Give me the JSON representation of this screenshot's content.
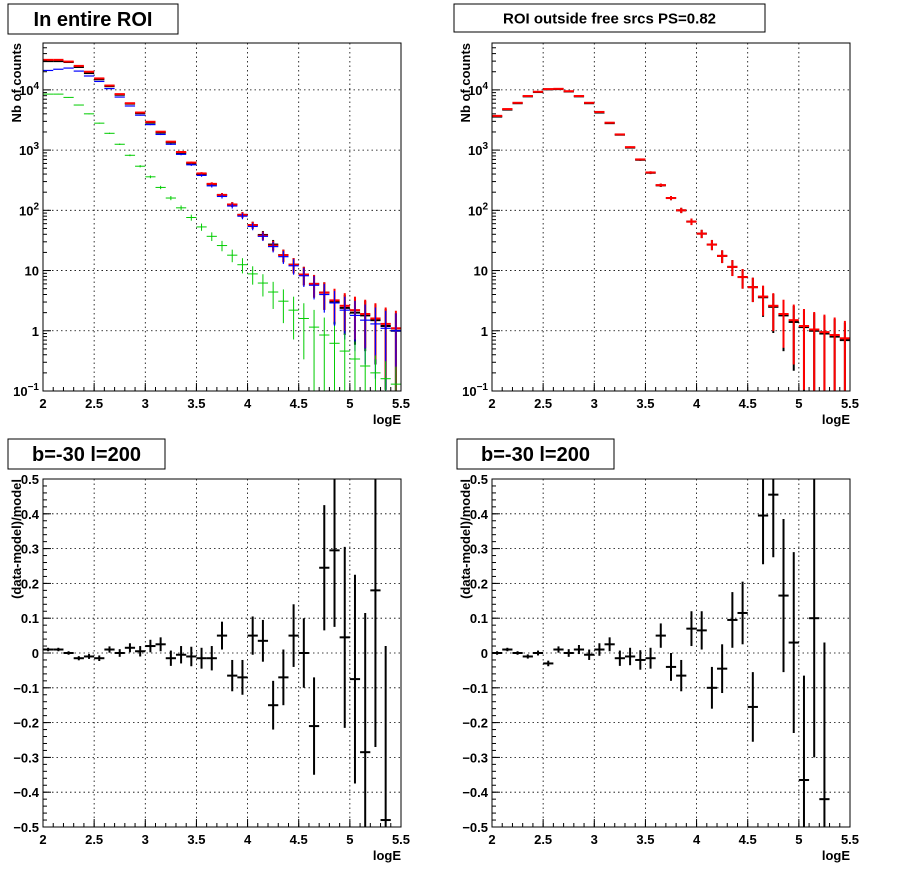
{
  "chart_data": [
    {
      "type": "scatter",
      "title": "In entire ROI",
      "xlabel": "logE",
      "ylabel": "Nb of counts",
      "xlim": [
        2,
        5.5
      ],
      "ylim": [
        0.1,
        60000
      ],
      "yscale": "log",
      "grid": true,
      "x_ticks": [
        "2",
        "2.5",
        "3",
        "3.5",
        "4",
        "4.5",
        "5",
        "5.5"
      ],
      "y_ticks": [
        "10^-1",
        "1",
        "10",
        "10^2",
        "10^3",
        "10^4"
      ],
      "x": [
        2.05,
        2.15,
        2.25,
        2.35,
        2.45,
        2.55,
        2.65,
        2.75,
        2.85,
        2.95,
        3.05,
        3.15,
        3.25,
        3.35,
        3.45,
        3.55,
        3.65,
        3.75,
        3.85,
        3.95,
        4.05,
        4.15,
        4.25,
        4.35,
        4.45,
        4.55,
        4.65,
        4.75,
        4.85,
        4.95,
        5.05,
        5.15,
        5.25,
        5.35,
        5.45
      ],
      "series": [
        {
          "color": "#000000",
          "values": [
            30000,
            30000,
            29000,
            24000,
            19000,
            15000,
            11500,
            8300,
            5900,
            4100,
            2850,
            1950,
            1340,
            900,
            600,
            400,
            270,
            180,
            125,
            84,
            57,
            39,
            27,
            18,
            12.5,
            8.6,
            6.0,
            4.3,
            3.0,
            2.4,
            2.0,
            1.8,
            1.5,
            1.2,
            1.0
          ]
        },
        {
          "color": "#ff0000",
          "values": [
            31500,
            31500,
            29500,
            25000,
            20000,
            15500,
            11800,
            8500,
            6000,
            4200,
            2950,
            2020,
            1380,
            930,
            620,
            410,
            275,
            180,
            125,
            84,
            57,
            38,
            26,
            18,
            12.5,
            8.6,
            6.0,
            4.3,
            3.2,
            2.6,
            2.2,
            1.9,
            1.6,
            1.3,
            1.1
          ]
        },
        {
          "color": "#0000ff",
          "values": [
            21000,
            22000,
            23000,
            20500,
            17000,
            13800,
            10500,
            7600,
            5400,
            3800,
            2650,
            1820,
            1250,
            850,
            570,
            380,
            255,
            170,
            118,
            80,
            54,
            37,
            25,
            17,
            12,
            8.2,
            5.7,
            4.0,
            2.9,
            2.2,
            1.8,
            1.5,
            1.3,
            1.1,
            1.0
          ]
        },
        {
          "color": "#00cc00",
          "values": [
            8500,
            8500,
            7500,
            5600,
            4000,
            2800,
            1900,
            1250,
            820,
            540,
            360,
            240,
            160,
            110,
            76,
            53,
            37,
            26,
            18,
            12.5,
            8.8,
            6.2,
            4.4,
            3.1,
            2.2,
            1.6,
            1.15,
            0.85,
            0.62,
            0.46,
            0.34,
            0.26,
            0.2,
            0.16,
            0.13
          ]
        }
      ]
    },
    {
      "type": "scatter",
      "title": "ROI outside free srcs PS=0.82",
      "xlabel": "logE",
      "ylabel": "Nb of counts",
      "xlim": [
        2,
        5.5
      ],
      "ylim": [
        0.1,
        60000
      ],
      "yscale": "log",
      "grid": true,
      "x_ticks": [
        "2",
        "2.5",
        "3",
        "3.5",
        "4",
        "4.5",
        "5",
        "5.5"
      ],
      "y_ticks": [
        "10^-1",
        "1",
        "10",
        "10^2",
        "10^3",
        "10^4"
      ],
      "x": [
        2.05,
        2.15,
        2.25,
        2.35,
        2.45,
        2.55,
        2.65,
        2.75,
        2.85,
        2.95,
        3.05,
        3.15,
        3.25,
        3.35,
        3.45,
        3.55,
        3.65,
        3.75,
        3.85,
        3.95,
        4.05,
        4.15,
        4.25,
        4.35,
        4.45,
        4.55,
        4.65,
        4.75,
        4.85,
        4.95,
        5.05,
        5.15,
        5.25,
        5.35,
        5.45
      ],
      "series": [
        {
          "color": "#000000",
          "values": [
            3600,
            4700,
            6000,
            7800,
            9200,
            10200,
            10300,
            9400,
            7800,
            6000,
            4200,
            2800,
            1800,
            1100,
            690,
            420,
            260,
            160,
            100,
            65,
            41,
            27,
            17.5,
            11.5,
            7.8,
            5.3,
            3.6,
            2.5,
            1.8,
            1.4,
            1.15,
            1.0,
            0.9,
            0.8,
            0.7
          ]
        },
        {
          "color": "#ff0000",
          "values": [
            3700,
            4800,
            6100,
            7900,
            9300,
            10300,
            10400,
            9500,
            7900,
            6100,
            4300,
            2850,
            1820,
            1120,
            700,
            425,
            262,
            160,
            100,
            65,
            41,
            27,
            17.5,
            11.5,
            7.8,
            5.3,
            3.7,
            2.6,
            1.9,
            1.5,
            1.2,
            1.05,
            0.95,
            0.85,
            0.75
          ]
        }
      ]
    },
    {
      "type": "scatter",
      "title": "b=-30 l=200",
      "xlabel": "logE",
      "ylabel": "(data-model)/model",
      "xlim": [
        2,
        5.5
      ],
      "ylim": [
        -0.5,
        0.5
      ],
      "grid": true,
      "x_ticks": [
        "2",
        "2.5",
        "3",
        "3.5",
        "4",
        "4.5",
        "5",
        "5.5"
      ],
      "y_ticks": [
        "−0.5",
        "−0.4",
        "−0.3",
        "−0.2",
        "−0.1",
        "0",
        "0.1",
        "0.2",
        "0.3",
        "0.4",
        "0.5"
      ],
      "x": [
        2.05,
        2.15,
        2.25,
        2.35,
        2.45,
        2.55,
        2.65,
        2.75,
        2.85,
        2.95,
        3.05,
        3.15,
        3.25,
        3.35,
        3.45,
        3.55,
        3.65,
        3.75,
        3.85,
        3.95,
        4.05,
        4.15,
        4.25,
        4.35,
        4.45,
        4.55,
        4.65,
        4.75,
        4.85,
        4.95,
        5.05,
        5.15,
        5.25,
        5.35,
        5.45
      ],
      "values": [
        0.01,
        0.01,
        0.0,
        -0.015,
        -0.01,
        -0.015,
        0.01,
        0.0,
        0.015,
        0.005,
        0.02,
        0.025,
        -0.015,
        -0.005,
        -0.01,
        -0.015,
        -0.015,
        0.05,
        -0.065,
        -0.07,
        0.05,
        0.035,
        -0.15,
        -0.07,
        0.05,
        0.0,
        -0.21,
        0.245,
        0.295,
        0.045,
        -0.075,
        -0.285,
        0.18,
        -0.48,
        null
      ],
      "errors": [
        0.005,
        0.005,
        0.005,
        0.006,
        0.007,
        0.008,
        0.009,
        0.011,
        0.013,
        0.015,
        0.018,
        0.02,
        0.022,
        0.025,
        0.028,
        0.03,
        0.035,
        0.04,
        0.045,
        0.05,
        0.055,
        0.06,
        0.07,
        0.08,
        0.09,
        0.1,
        0.14,
        0.18,
        0.22,
        0.26,
        0.3,
        0.4,
        0.45,
        0.5,
        0
      ]
    },
    {
      "type": "scatter",
      "title": "b=-30 l=200",
      "xlabel": "logE",
      "ylabel": "(data-model)/model",
      "xlim": [
        2,
        5.5
      ],
      "ylim": [
        -0.5,
        0.5
      ],
      "grid": true,
      "x_ticks": [
        "2",
        "2.5",
        "3",
        "3.5",
        "4",
        "4.5",
        "5",
        "5.5"
      ],
      "y_ticks": [
        "−0.5",
        "−0.4",
        "−0.3",
        "−0.2",
        "−0.1",
        "0",
        "0.1",
        "0.2",
        "0.3",
        "0.4",
        "0.5"
      ],
      "x": [
        2.05,
        2.15,
        2.25,
        2.35,
        2.45,
        2.55,
        2.65,
        2.75,
        2.85,
        2.95,
        3.05,
        3.15,
        3.25,
        3.35,
        3.45,
        3.55,
        3.65,
        3.75,
        3.85,
        3.95,
        4.05,
        4.15,
        4.25,
        4.35,
        4.45,
        4.55,
        4.65,
        4.75,
        4.85,
        4.95,
        5.05,
        5.15,
        5.25,
        5.35,
        5.45
      ],
      "values": [
        0.0,
        0.01,
        0.0,
        -0.01,
        0.0,
        -0.03,
        0.01,
        0.0,
        0.01,
        -0.005,
        0.01,
        0.025,
        -0.015,
        -0.01,
        -0.02,
        -0.015,
        0.05,
        -0.04,
        -0.065,
        0.07,
        0.065,
        -0.1,
        -0.045,
        0.095,
        0.115,
        -0.155,
        0.395,
        0.455,
        0.165,
        0.03,
        -0.365,
        0.1,
        -0.42,
        null,
        null
      ],
      "errors": [
        0.005,
        0.005,
        0.005,
        0.006,
        0.007,
        0.008,
        0.009,
        0.011,
        0.013,
        0.015,
        0.018,
        0.02,
        0.022,
        0.025,
        0.028,
        0.03,
        0.035,
        0.04,
        0.045,
        0.05,
        0.055,
        0.06,
        0.07,
        0.08,
        0.09,
        0.1,
        0.14,
        0.18,
        0.22,
        0.26,
        0.3,
        0.4,
        0.45,
        0,
        0
      ]
    }
  ]
}
